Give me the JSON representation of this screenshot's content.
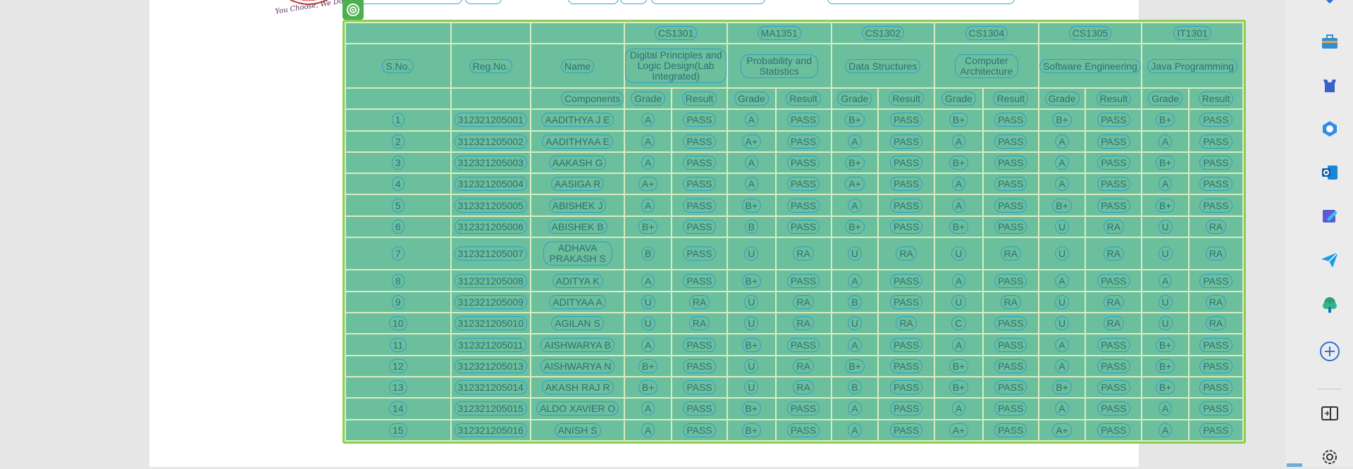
{
  "document": {
    "logo_text": "You Choose, We Do It",
    "table": {
      "course_codes": [
        "CS1301",
        "MA1351",
        "CS1302",
        "CS1304",
        "CS1305",
        "IT1301"
      ],
      "headers": {
        "sno": "S.No.",
        "regno": "Reg.No.",
        "name": "Name",
        "components": "Components",
        "grade": "Grade",
        "result": "Result"
      },
      "course_names": [
        "Digital Principles and Logic Design(Lab Integrated)",
        "Probability and Statistics",
        "Data Structures",
        "Computer Architecture",
        "Software Engineering",
        "Java Programming"
      ],
      "rows": [
        {
          "sno": "1",
          "reg": "312321205001",
          "name": "AADITHYA J E",
          "g": [
            "A",
            "A",
            "B+",
            "B+",
            "B+",
            "B+"
          ],
          "r": [
            "PASS",
            "PASS",
            "PASS",
            "PASS",
            "PASS",
            "PASS"
          ]
        },
        {
          "sno": "2",
          "reg": "312321205002",
          "name": "AADITHYAA E",
          "g": [
            "A",
            "A+",
            "A",
            "A",
            "A",
            "A"
          ],
          "r": [
            "PASS",
            "PASS",
            "PASS",
            "PASS",
            "PASS",
            "PASS"
          ]
        },
        {
          "sno": "3",
          "reg": "312321205003",
          "name": "AAKASH G",
          "g": [
            "A",
            "A",
            "B+",
            "B+",
            "A",
            "B+"
          ],
          "r": [
            "PASS",
            "PASS",
            "PASS",
            "PASS",
            "PASS",
            "PASS"
          ]
        },
        {
          "sno": "4",
          "reg": "312321205004",
          "name": "AASIGA R",
          "g": [
            "A+",
            "A",
            "A+",
            "A",
            "A",
            "A"
          ],
          "r": [
            "PASS",
            "PASS",
            "PASS",
            "PASS",
            "PASS",
            "PASS"
          ]
        },
        {
          "sno": "5",
          "reg": "312321205005",
          "name": "ABISHEK J",
          "g": [
            "A",
            "B+",
            "A",
            "A",
            "B+",
            "B+"
          ],
          "r": [
            "PASS",
            "PASS",
            "PASS",
            "PASS",
            "PASS",
            "PASS"
          ]
        },
        {
          "sno": "6",
          "reg": "312321205006",
          "name": "ABISHEK B",
          "g": [
            "B+",
            "B",
            "B+",
            "B+",
            "U",
            "U"
          ],
          "r": [
            "PASS",
            "PASS",
            "PASS",
            "PASS",
            "RA",
            "RA"
          ]
        },
        {
          "sno": "7",
          "reg": "312321205007",
          "name": "ADHAVA PRAKASH S",
          "g": [
            "B",
            "U",
            "U",
            "U",
            "U",
            "U"
          ],
          "r": [
            "PASS",
            "RA",
            "RA",
            "RA",
            "RA",
            "RA"
          ]
        },
        {
          "sno": "8",
          "reg": "312321205008",
          "name": "ADITYA K",
          "g": [
            "A",
            "B+",
            "A",
            "A",
            "A",
            "A"
          ],
          "r": [
            "PASS",
            "PASS",
            "PASS",
            "PASS",
            "PASS",
            "PASS"
          ]
        },
        {
          "sno": "9",
          "reg": "312321205009",
          "name": "ADITYAA A",
          "g": [
            "U",
            "U",
            "B",
            "U",
            "U",
            "U"
          ],
          "r": [
            "RA",
            "RA",
            "PASS",
            "RA",
            "RA",
            "RA"
          ]
        },
        {
          "sno": "10",
          "reg": "312321205010",
          "name": "AGILAN S",
          "g": [
            "U",
            "U",
            "U",
            "C",
            "U",
            "U"
          ],
          "r": [
            "RA",
            "RA",
            "RA",
            "PASS",
            "RA",
            "RA"
          ]
        },
        {
          "sno": "11",
          "reg": "312321205011",
          "name": "AISHWARYA B",
          "g": [
            "A",
            "B+",
            "A",
            "A",
            "A",
            "B+"
          ],
          "r": [
            "PASS",
            "PASS",
            "PASS",
            "PASS",
            "PASS",
            "PASS"
          ]
        },
        {
          "sno": "12",
          "reg": "312321205013",
          "name": "AISHWARYA N",
          "g": [
            "B+",
            "U",
            "B+",
            "B+",
            "A",
            "B+"
          ],
          "r": [
            "PASS",
            "RA",
            "PASS",
            "PASS",
            "PASS",
            "PASS"
          ]
        },
        {
          "sno": "13",
          "reg": "312321205014",
          "name": "AKASH RAJ R",
          "g": [
            "B+",
            "U",
            "B",
            "B+",
            "B+",
            "B+"
          ],
          "r": [
            "PASS",
            "RA",
            "PASS",
            "PASS",
            "PASS",
            "PASS"
          ]
        },
        {
          "sno": "14",
          "reg": "312321205015",
          "name": "ALDO XAVIER O",
          "g": [
            "A",
            "B+",
            "A",
            "A",
            "A",
            "A"
          ],
          "r": [
            "PASS",
            "PASS",
            "PASS",
            "PASS",
            "PASS",
            "PASS"
          ]
        },
        {
          "sno": "15",
          "reg": "312321205016",
          "name": "ANISH S",
          "g": [
            "A",
            "B+",
            "A",
            "A+",
            "A+",
            "A"
          ],
          "r": [
            "PASS",
            "PASS",
            "PASS",
            "PASS",
            "PASS",
            "PASS"
          ]
        }
      ]
    }
  },
  "sidebar": {
    "icons": [
      "chevron-down-icon",
      "briefcase-icon",
      "chess-icon",
      "copilot-icon",
      "outlook-icon",
      "designer-icon",
      "send-icon",
      "tree-icon",
      "add-icon",
      "split-screen-icon",
      "settings-icon"
    ]
  },
  "colors": {
    "table_fill": "#6cbf9d",
    "table_border": "#8ccf53",
    "chip_outline": "#2e9fc4"
  }
}
